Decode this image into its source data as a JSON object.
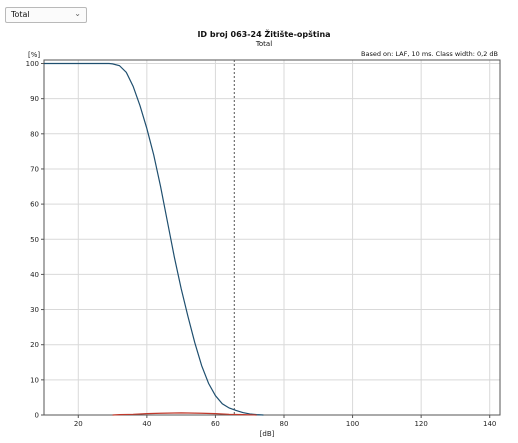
{
  "selector": {
    "value": "Total",
    "chevron_icon": "chevron-down-icon"
  },
  "chart_data": {
    "type": "line",
    "title": "ID broj 063-24 Žitište-opština",
    "subtitle": "Total",
    "annotation": "Based on: LAF, 10 ms. Class width: 0,2 dB",
    "ylabel": "[%]",
    "xlabel": "[dB]",
    "xlim": [
      10,
      143
    ],
    "ylim": [
      0,
      101
    ],
    "x_ticks": [
      20,
      40,
      60,
      80,
      100,
      120,
      140
    ],
    "y_ticks": [
      0,
      10,
      20,
      30,
      40,
      50,
      60,
      70,
      80,
      90,
      100
    ],
    "grid": true,
    "marker_line_x": 65.5,
    "series": [
      {
        "color": "#1f4f6f",
        "points": [
          [
            10,
            100
          ],
          [
            29,
            100
          ],
          [
            30,
            99.9
          ],
          [
            32,
            99.4
          ],
          [
            34,
            97.5
          ],
          [
            36,
            93.5
          ],
          [
            38,
            88
          ],
          [
            40,
            81.5
          ],
          [
            42,
            74
          ],
          [
            44,
            65
          ],
          [
            46,
            55
          ],
          [
            48,
            45
          ],
          [
            50,
            36
          ],
          [
            52,
            28
          ],
          [
            54,
            20.5
          ],
          [
            56,
            14
          ],
          [
            58,
            9
          ],
          [
            60,
            5.5
          ],
          [
            62,
            3.2
          ],
          [
            64,
            2
          ],
          [
            66,
            1.3
          ],
          [
            68,
            0.7
          ],
          [
            70,
            0.3
          ],
          [
            72,
            0.1
          ],
          [
            74,
            0
          ]
        ]
      },
      {
        "color": "#c0392b",
        "points": [
          [
            30,
            0
          ],
          [
            32,
            0.1
          ],
          [
            36,
            0.2
          ],
          [
            40,
            0.4
          ],
          [
            44,
            0.5
          ],
          [
            50,
            0.6
          ],
          [
            56,
            0.5
          ],
          [
            60,
            0.4
          ],
          [
            64,
            0.2
          ],
          [
            68,
            0.1
          ],
          [
            72,
            0
          ]
        ]
      }
    ]
  }
}
